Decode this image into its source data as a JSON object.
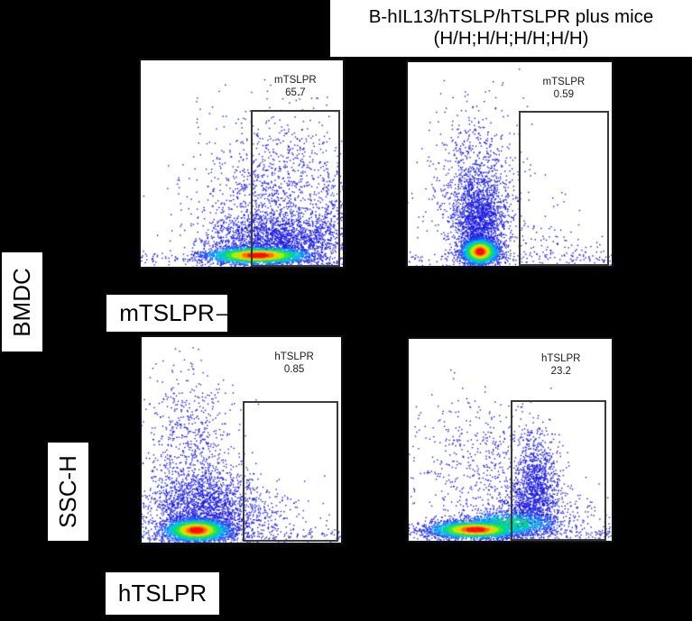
{
  "title": {
    "line1": "B-hIL13/hTSLP/hTSLPR plus mice",
    "line2": "(H/H;H/H;H/H;H/H)"
  },
  "row_labels": {
    "bmdc": "BMDC",
    "ssch": "SSC-H"
  },
  "axis_labels": {
    "mtslpr": "mTSLPR",
    "mtslpr_dash": "–",
    "htslpr": "hTSLPR"
  },
  "chart_data": {
    "type": "scatter",
    "subtype": "flow-cytometry-pseudocolor-density",
    "title": "B-hIL13/hTSLP/hTSLPR plus mice (H/H;H/H;H/H;H/H)",
    "row_label": "BMDC",
    "ylabel": "SSC-H",
    "xlabels": [
      "mTSLPR",
      "hTSLPR"
    ],
    "legend": "none",
    "grid": false,
    "colormap": [
      {
        "t": 0.93,
        "c": "#ff0f00"
      },
      {
        "t": 0.84,
        "c": "#ff6f00"
      },
      {
        "t": 0.74,
        "c": "#ffc800"
      },
      {
        "t": 0.62,
        "c": "#b4ef00"
      },
      {
        "t": 0.5,
        "c": "#3ce43c"
      },
      {
        "t": 0.38,
        "c": "#00d88c"
      },
      {
        "t": 0.27,
        "c": "#00c3e1"
      },
      {
        "t": 0.16,
        "c": "#0091ff"
      },
      {
        "t": 0.07,
        "c": "#1e46f0"
      },
      {
        "t": 0.0,
        "c": "#1a1ae0"
      }
    ],
    "plots": [
      {
        "position": "top-left",
        "x_axis": "mTSLPR",
        "y_axis": "SSC-H",
        "gate_label": "mTSLPR",
        "gate_value": "65.7",
        "gate": {
          "l": 0.545,
          "t": 0.24,
          "r": 0.985,
          "b": 1.0
        },
        "stats_center_x": 0.765,
        "populations": [
          {
            "kind": "core",
            "cx": 0.58,
            "cy": 0.945,
            "sx": 0.13,
            "sy": 0.021,
            "n": 2800,
            "peak": 1.0
          },
          {
            "kind": "cloud",
            "cx": 0.68,
            "cy": 0.86,
            "sx": 0.18,
            "sy": 0.06,
            "n": 1700
          },
          {
            "kind": "cloud",
            "cx": 0.65,
            "cy": 0.68,
            "sx": 0.2,
            "sy": 0.14,
            "n": 850
          },
          {
            "kind": "cloud",
            "cx": 0.66,
            "cy": 0.45,
            "sx": 0.18,
            "sy": 0.15,
            "n": 280
          },
          {
            "kind": "cloud",
            "cx": 0.95,
            "cy": 0.75,
            "sx": 0.05,
            "sy": 0.16,
            "n": 220
          },
          {
            "kind": "floor",
            "cy": 0.965,
            "sy": 0.02,
            "n": 160
          }
        ]
      },
      {
        "position": "top-right",
        "x_axis": "mTSLPR",
        "y_axis": "SSC-H",
        "gate_label": "mTSLPR",
        "gate_value": "0.59",
        "gate": {
          "l": 0.545,
          "t": 0.24,
          "r": 0.985,
          "b": 1.0
        },
        "stats_center_x": 0.765,
        "populations": [
          {
            "kind": "core",
            "cx": 0.355,
            "cy": 0.93,
            "sx": 0.045,
            "sy": 0.032,
            "n": 2600,
            "peak": 1.0
          },
          {
            "kind": "cloud",
            "cx": 0.35,
            "cy": 0.77,
            "sx": 0.06,
            "sy": 0.1,
            "n": 1500
          },
          {
            "kind": "cloud",
            "cx": 0.33,
            "cy": 0.52,
            "sx": 0.1,
            "sy": 0.16,
            "n": 550
          },
          {
            "kind": "cloud",
            "cx": 0.38,
            "cy": 0.75,
            "sx": 0.16,
            "sy": 0.13,
            "n": 300
          },
          {
            "kind": "cloud",
            "cx": 0.72,
            "cy": 0.92,
            "sx": 0.18,
            "sy": 0.05,
            "n": 70
          },
          {
            "kind": "floor",
            "cy": 0.965,
            "sy": 0.02,
            "n": 150
          }
        ]
      },
      {
        "position": "bottom-left",
        "x_axis": "hTSLPR",
        "y_axis": "SSC-H",
        "gate_label": "hTSLPR",
        "gate_value": "0.85",
        "gate": {
          "l": 0.505,
          "t": 0.31,
          "r": 0.985,
          "b": 0.995
        },
        "stats_center_x": 0.765,
        "populations": [
          {
            "kind": "core",
            "cx": 0.275,
            "cy": 0.94,
            "sx": 0.085,
            "sy": 0.028,
            "n": 2800,
            "peak": 1.0
          },
          {
            "kind": "cloud",
            "cx": 0.3,
            "cy": 0.82,
            "sx": 0.14,
            "sy": 0.09,
            "n": 1600
          },
          {
            "kind": "cloud",
            "cx": 0.24,
            "cy": 0.52,
            "sx": 0.13,
            "sy": 0.19,
            "n": 650
          },
          {
            "kind": "cloud",
            "cx": 0.52,
            "cy": 0.87,
            "sx": 0.13,
            "sy": 0.08,
            "n": 350
          },
          {
            "kind": "cloud",
            "cx": 0.72,
            "cy": 0.88,
            "sx": 0.15,
            "sy": 0.08,
            "n": 50
          },
          {
            "kind": "floor",
            "cy": 0.965,
            "sy": 0.02,
            "n": 150
          }
        ]
      },
      {
        "position": "bottom-right",
        "x_axis": "hTSLPR",
        "y_axis": "SSC-H",
        "gate_label": "hTSLPR",
        "gate_value": "23.2",
        "gate": {
          "l": 0.5,
          "t": 0.305,
          "r": 0.975,
          "b": 1.0
        },
        "stats_center_x": 0.75,
        "populations": [
          {
            "kind": "core",
            "cx": 0.33,
            "cy": 0.945,
            "sx": 0.115,
            "sy": 0.022,
            "n": 2800,
            "peak": 1.0
          },
          {
            "kind": "core",
            "cx": 0.5,
            "cy": 0.915,
            "sx": 0.13,
            "sy": 0.035,
            "n": 900,
            "peak": 0.5
          },
          {
            "kind": "cloud",
            "cx": 0.63,
            "cy": 0.74,
            "sx": 0.06,
            "sy": 0.13,
            "n": 1200
          },
          {
            "kind": "cloud",
            "cx": 0.56,
            "cy": 0.86,
            "sx": 0.09,
            "sy": 0.06,
            "n": 500
          },
          {
            "kind": "cloud",
            "cx": 0.33,
            "cy": 0.6,
            "sx": 0.17,
            "sy": 0.17,
            "n": 500
          },
          {
            "kind": "cloud",
            "cx": 0.85,
            "cy": 0.88,
            "sx": 0.1,
            "sy": 0.09,
            "n": 90
          },
          {
            "kind": "floor",
            "cy": 0.965,
            "sy": 0.02,
            "n": 200
          }
        ]
      }
    ]
  }
}
